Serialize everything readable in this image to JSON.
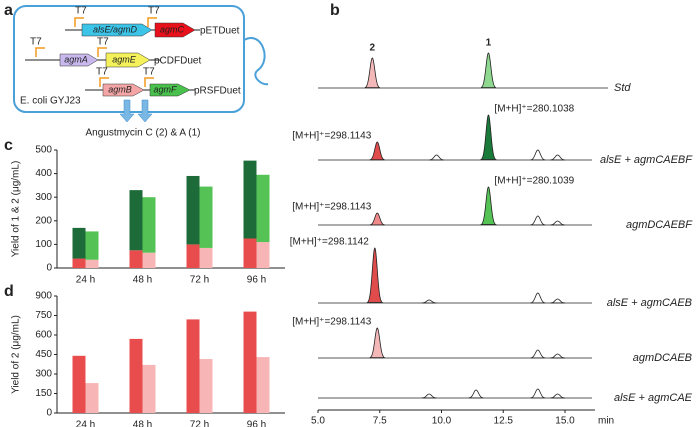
{
  "panel_labels": [
    "a",
    "b",
    "c",
    "d"
  ],
  "diagram": {
    "promoter": "T7",
    "plasmids": [
      {
        "genes": [
          "alsE/agmD",
          "agmC"
        ],
        "name": "pETDuet"
      },
      {
        "genes": [
          "agmA",
          "agmE"
        ],
        "name": "pCDFDuet"
      },
      {
        "genes": [
          "agmB",
          "agmF"
        ],
        "name": "pRSFDuet"
      }
    ],
    "host": "E. coli GYJ23",
    "product": "Angustmycin C (2) & A (1)"
  },
  "chart_data": [
    {
      "type": "bar",
      "stacked": true,
      "ylabel": "Yield of 1 & 2 (μg/mL)",
      "categories": [
        "24 h",
        "48 h",
        "72 h",
        "96 h"
      ],
      "ylim": [
        0,
        500
      ],
      "yticks": [
        0,
        100,
        200,
        300,
        400,
        500
      ],
      "series": [
        {
          "color": "#e84c4c",
          "stack": 0,
          "values": [
            40,
            75,
            100,
            125
          ]
        },
        {
          "color": "#1e6b3a",
          "stack": 0,
          "values": [
            130,
            255,
            290,
            330
          ]
        },
        {
          "color": "#f7b5b5",
          "stack": 1,
          "values": [
            35,
            65,
            85,
            110
          ]
        },
        {
          "color": "#55c255",
          "stack": 1,
          "values": [
            120,
            235,
            260,
            285
          ]
        }
      ]
    },
    {
      "type": "bar",
      "stacked": false,
      "ylabel": "Yield of 2 (μg/mL)",
      "categories": [
        "24 h",
        "48 h",
        "72 h",
        "96 h"
      ],
      "ylim": [
        0,
        900
      ],
      "yticks": [
        0,
        150,
        300,
        450,
        600,
        750,
        900
      ],
      "series": [
        {
          "color": "#e84c4c",
          "stack": 0,
          "values": [
            440,
            570,
            720,
            780
          ]
        },
        {
          "color": "#f7b5b5",
          "stack": 1,
          "values": [
            230,
            370,
            415,
            430
          ]
        }
      ]
    },
    {
      "type": "chromatogram",
      "xlabel": "min",
      "xlim": [
        5,
        15
      ],
      "xticks": [
        {
          "value": 5,
          "label": "5.0"
        },
        {
          "value": 7.5,
          "label": "7.5"
        },
        {
          "value": 10,
          "label": "10.0"
        },
        {
          "value": 12.5,
          "label": "12.5"
        },
        {
          "value": 15,
          "label": "15.0"
        }
      ],
      "traces": [
        {
          "name": "Std",
          "peaks": [
            {
              "x": 7.2,
              "height": 30,
              "color": "#f4b8b8",
              "label": "2"
            },
            {
              "x": 11.9,
              "height": 35,
              "color": "#8fd88f",
              "label": "1"
            }
          ]
        },
        {
          "name": "alsE + agmCAEBF",
          "peaks": [
            {
              "x": 7.4,
              "height": 18,
              "color": "#e04b4b",
              "annotation": "[M+H]⁺=298.1143"
            },
            {
              "x": 9.8,
              "height": 5
            },
            {
              "x": 11.9,
              "height": 45,
              "color": "#1a7a3a",
              "annotation": "[M+H]⁺=280.1038"
            },
            {
              "x": 13.9,
              "height": 10
            },
            {
              "x": 14.7,
              "height": 5
            }
          ]
        },
        {
          "name": "agmDCAEBF",
          "peaks": [
            {
              "x": 7.4,
              "height": 12,
              "color": "#f08a8a",
              "annotation": "[M+H]⁺=298.1143"
            },
            {
              "x": 11.9,
              "height": 38,
              "color": "#55c255",
              "annotation": "[M+H]⁺=280.1039"
            },
            {
              "x": 13.9,
              "height": 9
            },
            {
              "x": 14.7,
              "height": 4
            }
          ]
        },
        {
          "name": "alsE + agmCAEB",
          "peaks": [
            {
              "x": 7.3,
              "height": 55,
              "color": "#e04b4b",
              "annotation": "[M+H]⁺=298.1142"
            },
            {
              "x": 9.5,
              "height": 3
            },
            {
              "x": 13.9,
              "height": 10
            },
            {
              "x": 14.7,
              "height": 4
            }
          ]
        },
        {
          "name": "agmDCAEB",
          "peaks": [
            {
              "x": 7.4,
              "height": 30,
              "color": "#f4b8b8",
              "annotation": "[M+H]⁺=298.1143"
            },
            {
              "x": 13.9,
              "height": 8
            },
            {
              "x": 14.7,
              "height": 4
            }
          ]
        },
        {
          "name": "alsE + agmCAE",
          "peaks": [
            {
              "x": 9.5,
              "height": 4
            },
            {
              "x": 11.4,
              "height": 8
            },
            {
              "x": 13.9,
              "height": 9
            },
            {
              "x": 14.7,
              "height": 4
            }
          ]
        }
      ]
    }
  ]
}
